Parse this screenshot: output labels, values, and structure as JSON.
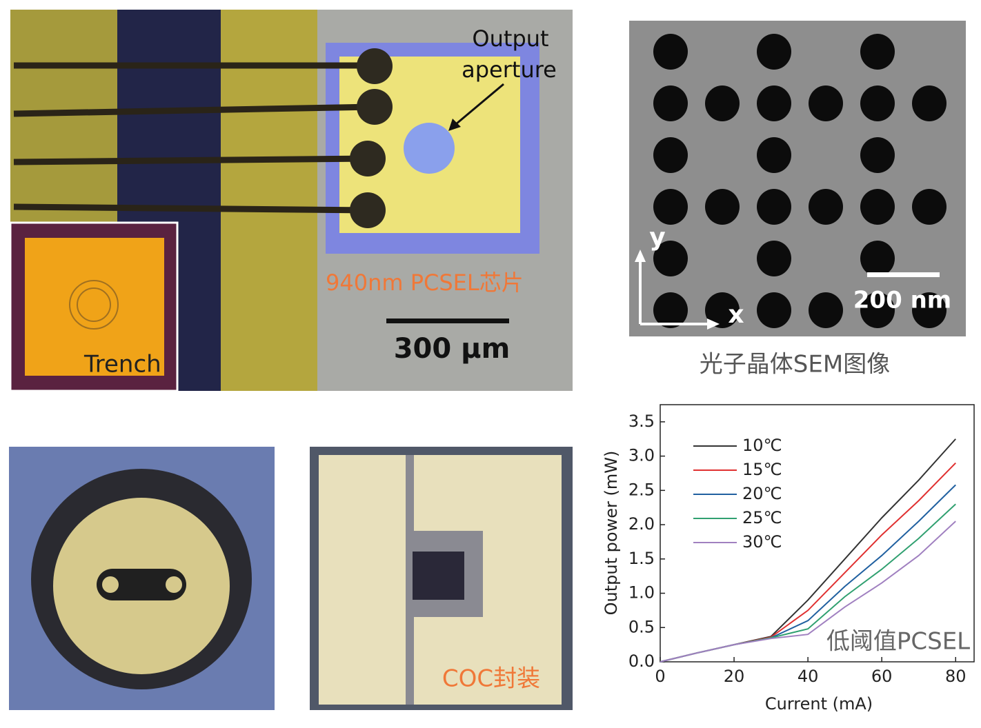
{
  "figure": {
    "chip_label": "940nm PCSEL芯片",
    "output_label_line1": "Output",
    "output_label_line2": "aperture",
    "chip_scale": "300 μm",
    "inset_label": "Trench",
    "sem_axis_y": "y",
    "sem_axis_x": "x",
    "sem_scale": "200 nm",
    "sem_caption": "光子晶体SEM图像",
    "coc_label": "COC封装"
  },
  "chart_data": {
    "type": "line",
    "x_label": "Current (mA)",
    "y_label": "Output power (mW)",
    "annotation": "低阈值PCSEL",
    "x": [
      0,
      10,
      20,
      30,
      40,
      50,
      60,
      70,
      80
    ],
    "series": [
      {
        "name": "10℃",
        "color": "#333333",
        "values": [
          0,
          0.13,
          0.25,
          0.37,
          0.9,
          1.5,
          2.1,
          2.65,
          3.25
        ]
      },
      {
        "name": "15℃",
        "color": "#e03030",
        "values": [
          0,
          0.13,
          0.25,
          0.36,
          0.75,
          1.3,
          1.85,
          2.35,
          2.9
        ]
      },
      {
        "name": "20℃",
        "color": "#2060a0",
        "values": [
          0,
          0.13,
          0.25,
          0.35,
          0.6,
          1.1,
          1.55,
          2.05,
          2.58
        ]
      },
      {
        "name": "25℃",
        "color": "#30a070",
        "values": [
          0,
          0.13,
          0.25,
          0.35,
          0.48,
          0.95,
          1.35,
          1.8,
          2.3
        ]
      },
      {
        "name": "30℃",
        "color": "#a080c0",
        "values": [
          0,
          0.13,
          0.25,
          0.34,
          0.4,
          0.8,
          1.15,
          1.55,
          2.05
        ]
      }
    ],
    "xlim": [
      0,
      85
    ],
    "xticks": [
      0,
      20,
      40,
      60,
      80
    ],
    "ylim": [
      0,
      3.75
    ],
    "yticks": [
      {
        "value": 0,
        "label": "0.0"
      },
      {
        "value": 0.5,
        "label": "0.5"
      },
      {
        "value": 1,
        "label": "1.0"
      },
      {
        "value": 1.5,
        "label": "1.5"
      },
      {
        "value": 2,
        "label": "2.0"
      },
      {
        "value": 2.5,
        "label": "2.5"
      },
      {
        "value": 3,
        "label": "3.0"
      },
      {
        "value": 3.5,
        "label": "3.5"
      }
    ],
    "legend": "upper left"
  }
}
